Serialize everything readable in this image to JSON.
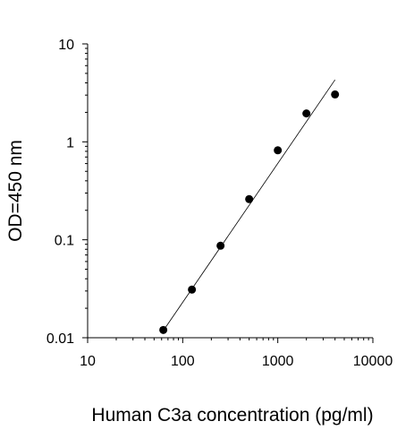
{
  "chart_data": {
    "type": "scatter",
    "title": "",
    "xlabel": "Human C3a concentration (pg/ml)",
    "ylabel": "OD=450 nm",
    "x_scale": "log",
    "y_scale": "log",
    "xlim": [
      10,
      10000
    ],
    "ylim": [
      0.01,
      10
    ],
    "x_ticks": [
      10,
      100,
      1000,
      10000
    ],
    "x_tick_labels": [
      "10",
      "100",
      "1000",
      "10000"
    ],
    "y_ticks": [
      0.01,
      0.1,
      1,
      10
    ],
    "y_tick_labels": [
      "0.01",
      "0.1",
      "1",
      "10"
    ],
    "grid": false,
    "legend": "none",
    "points": [
      {
        "x": 62.5,
        "y": 0.012
      },
      {
        "x": 125,
        "y": 0.031
      },
      {
        "x": 250,
        "y": 0.087
      },
      {
        "x": 500,
        "y": 0.26
      },
      {
        "x": 1000,
        "y": 0.82
      },
      {
        "x": 2000,
        "y": 1.95
      },
      {
        "x": 4000,
        "y": 3.05
      }
    ],
    "fit_line": {
      "x_start": 62.5,
      "y_start": 0.0118,
      "x_end": 4000,
      "y_end": 4.3
    },
    "colors": {
      "points": "#000000",
      "line": "#000000",
      "axes": "#000000"
    }
  }
}
